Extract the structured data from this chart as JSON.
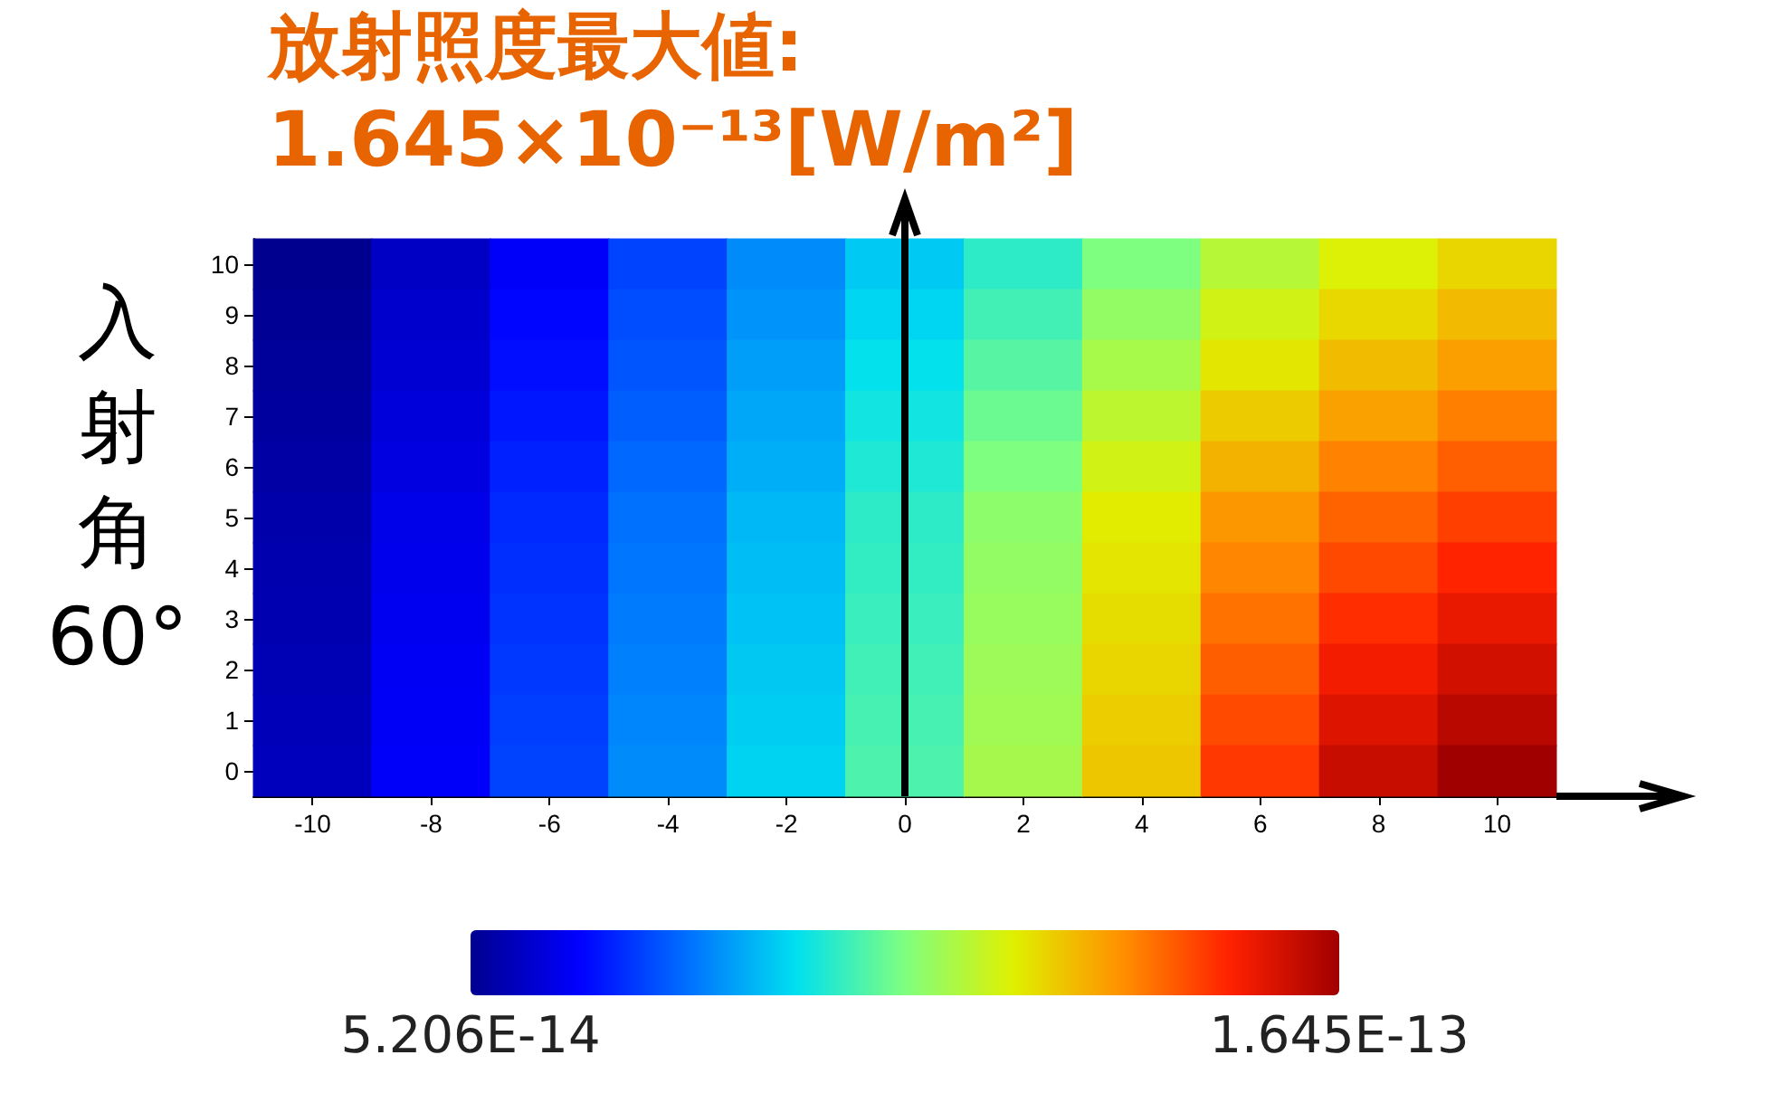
{
  "chart_data": {
    "type": "heatmap",
    "title": "放射照度最大値:",
    "subtitle": "1.645×10⁻¹³[W/m²]",
    "ylabel": "入射角60°",
    "categories": [
      "-10",
      "-8",
      "-6",
      "-4",
      "-2",
      "0",
      "2",
      "4",
      "6",
      "8",
      "10"
    ],
    "y_categories": [
      "10",
      "9",
      "8",
      "7",
      "6",
      "5",
      "4",
      "3",
      "2",
      "1",
      "0"
    ],
    "cells": [
      [
        5.206e-14,
        5.88e-14,
        6.55e-14,
        7.45e-14,
        8.35e-14,
        9.14e-14,
        9.93e-14,
        1.083e-13,
        1.162e-13,
        1.218e-13,
        1.263e-13
      ],
      [
        5.27e-14,
        5.97e-14,
        6.67e-14,
        7.57e-14,
        8.47e-14,
        9.3e-14,
        1.015e-13,
        1.112e-13,
        1.2e-13,
        1.258e-13,
        1.303e-13
      ],
      [
        5.34e-14,
        6.06e-14,
        6.78e-14,
        7.68e-14,
        8.58e-14,
        9.46e-14,
        1.038e-13,
        1.141e-13,
        1.238e-13,
        1.299e-13,
        1.344e-13
      ],
      [
        5.41e-14,
        6.15e-14,
        6.89e-14,
        7.79e-14,
        8.69e-14,
        9.61e-14,
        1.06e-13,
        1.171e-13,
        1.276e-13,
        1.339e-13,
        1.384e-13
      ],
      [
        5.48e-14,
        6.24e-14,
        7.01e-14,
        7.9e-14,
        8.8e-14,
        9.77e-14,
        1.083e-13,
        1.2e-13,
        1.314e-13,
        1.38e-13,
        1.425e-13
      ],
      [
        5.54e-14,
        6.33e-14,
        7.12e-14,
        8.02e-14,
        8.92e-14,
        9.93e-14,
        1.105e-13,
        1.229e-13,
        1.353e-13,
        1.42e-13,
        1.465e-13
      ],
      [
        5.59e-14,
        6.38e-14,
        7.19e-14,
        8.08e-14,
        8.98e-14,
        9.99e-14,
        1.112e-13,
        1.24e-13,
        1.377e-13,
        1.454e-13,
        1.501e-13
      ],
      [
        5.63e-14,
        6.42e-14,
        7.25e-14,
        8.15e-14,
        9.05e-14,
        1.006e-13,
        1.119e-13,
        1.251e-13,
        1.402e-13,
        1.488e-13,
        1.537e-13
      ],
      [
        5.68e-14,
        6.47e-14,
        7.32e-14,
        8.22e-14,
        9.12e-14,
        1.013e-13,
        1.126e-13,
        1.263e-13,
        1.427e-13,
        1.521e-13,
        1.573e-13
      ],
      [
        5.72e-14,
        6.51e-14,
        7.39e-14,
        8.29e-14,
        9.19e-14,
        1.02e-13,
        1.132e-13,
        1.274e-13,
        1.452e-13,
        1.555e-13,
        1.609e-13
      ],
      [
        5.77e-14,
        6.55e-14,
        7.45e-14,
        8.35e-14,
        9.25e-14,
        1.027e-13,
        1.139e-13,
        1.285e-13,
        1.476e-13,
        1.589e-13,
        1.645e-13
      ]
    ],
    "clim": [
      5.206e-14,
      1.645e-13
    ],
    "cticks": [
      {
        "value": 5.206e-14,
        "label": "5.206E-14"
      },
      {
        "value": 1.645e-13,
        "label": "1.645E-13"
      }
    ]
  }
}
